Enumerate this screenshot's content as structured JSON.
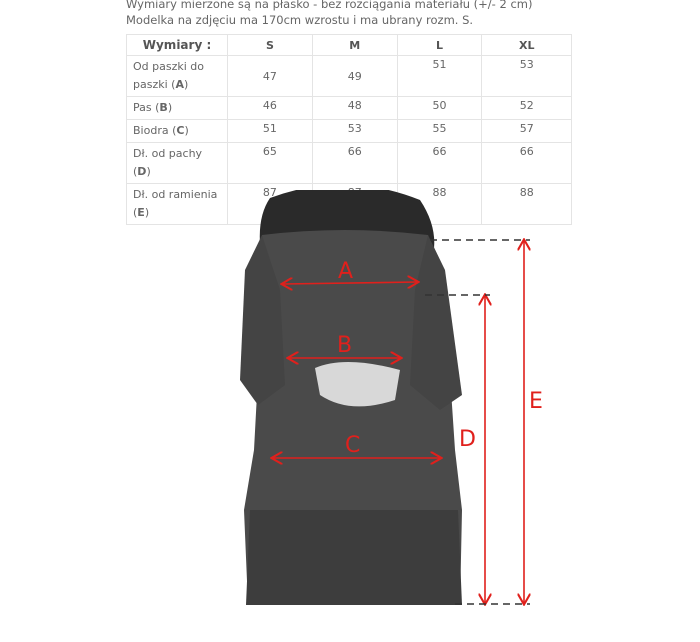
{
  "notes": [
    "Wymiary mierzone są na płasko - bez rozciągania materiału (+/- 2 cm)",
    "Modelka na zdjęciu ma 170cm wzrostu i ma ubrany rozm. S."
  ],
  "table": {
    "headers": [
      "Wymiary :",
      "S",
      "M",
      "L",
      "XL"
    ],
    "rows": [
      {
        "label": "Od paszki do paszki",
        "key": "A",
        "values": [
          "47",
          "49",
          "51",
          "53"
        ]
      },
      {
        "label": "Pas",
        "key": "B",
        "values": [
          "46",
          "48",
          "50",
          "52"
        ]
      },
      {
        "label": "Biodra",
        "key": "C",
        "values": [
          "51",
          "53",
          "55",
          "57"
        ]
      },
      {
        "label": "Dł. od pachy",
        "key": "D",
        "values": [
          "65",
          "66",
          "66",
          "66"
        ]
      },
      {
        "label": "Dł. od ramienia",
        "key": "E",
        "values": [
          "87",
          "87",
          "88",
          "88"
        ]
      }
    ]
  },
  "figure": {
    "labels": [
      "A",
      "B",
      "C",
      "D",
      "E"
    ],
    "arrow_color": "#e0201c",
    "dress_color": "#4a4a4a"
  }
}
